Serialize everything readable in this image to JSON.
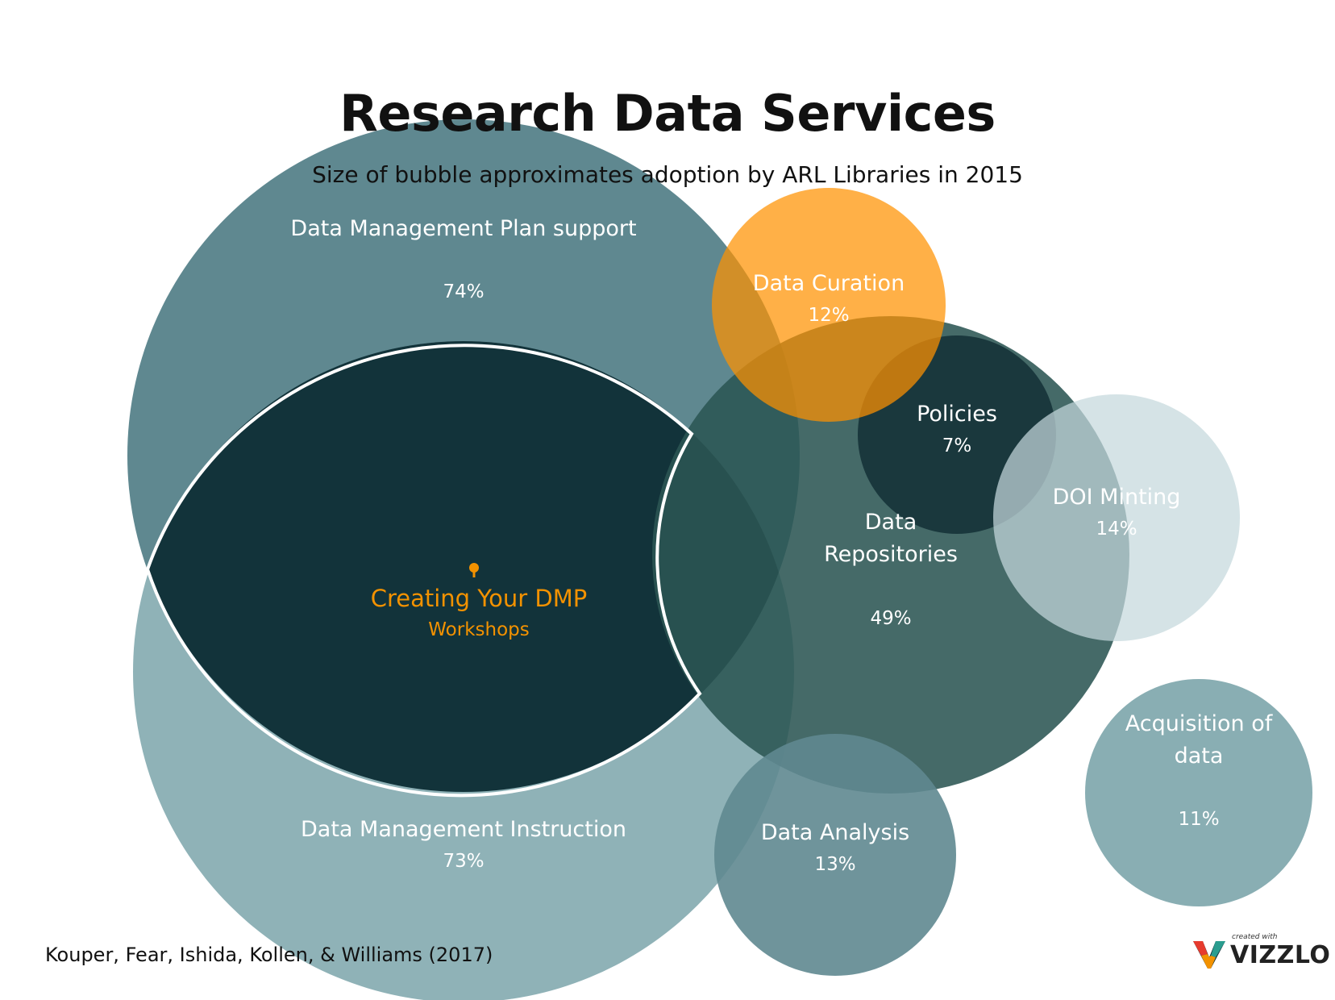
{
  "title": "Research Data Services",
  "subtitle": "Size of bubble approximates adoption by ARL Libraries in 2015",
  "source": "Kouper, Fear, Ishida, Kollen, & Williams (2017)",
  "logo": {
    "small_text": "created with",
    "brand": "VIZZLO"
  },
  "colors": {
    "dmp_support": "#5f8890",
    "dmp_instruction": "#89aeb3",
    "creating_dmp": "#12333a",
    "data_repositories": "#2b5553",
    "policies": "#153338",
    "doi_minting": "#c5d8dc",
    "data_curation": "#ff9100",
    "data_analysis": "#5f8890",
    "acquisition": "#89aeb3",
    "highlight_text": "#f39200"
  },
  "chart_data": {
    "type": "bubble",
    "title": "Research Data Services",
    "subtitle": "Size of bubble approximates adoption by ARL Libraries in 2015",
    "series": [
      {
        "id": "dmp_support",
        "name": "Data Management Plan support",
        "value": 74,
        "value_label": "74%"
      },
      {
        "id": "dmp_instruction",
        "name": "Data Management Instruction",
        "value": 73,
        "value_label": "73%"
      },
      {
        "id": "data_repositories",
        "name_lines": [
          "Data",
          "Repositories"
        ],
        "value": 49,
        "value_label": "49%"
      },
      {
        "id": "doi_minting",
        "name": "DOI Minting",
        "value": 14,
        "value_label": "14%"
      },
      {
        "id": "data_analysis",
        "name": "Data Analysis",
        "value": 13,
        "value_label": "13%"
      },
      {
        "id": "data_curation",
        "name": "Data Curation",
        "value": 12,
        "value_label": "12%"
      },
      {
        "id": "acquisition",
        "name_lines": [
          "Acquisition of",
          "data"
        ],
        "value": 11,
        "value_label": "11%"
      },
      {
        "id": "policies",
        "name": "Policies",
        "value": 7,
        "value_label": "7%"
      }
    ],
    "highlight": {
      "name": "Creating Your DMP",
      "subname": "Workshops"
    }
  }
}
